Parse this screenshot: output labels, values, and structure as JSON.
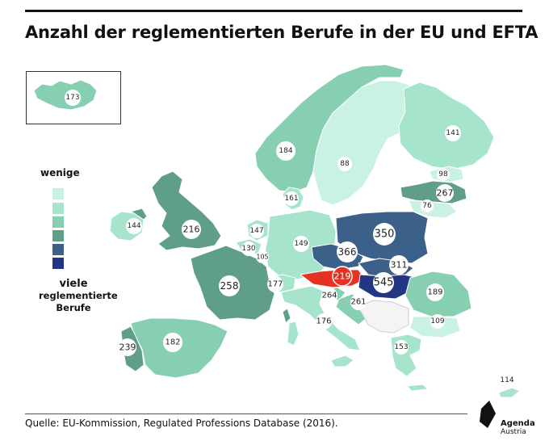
{
  "title": "Anzahl der reglementierten Berufe in der EU und EFTA",
  "legend": {
    "low_label": "wenige",
    "high_label_1": "viele",
    "high_label_2": "reglementierte",
    "high_label_3": "Berufe",
    "colors": [
      "#c9f2e4",
      "#a6e4cc",
      "#86cfb0",
      "#5f9f8a",
      "#3b6089",
      "#223684"
    ]
  },
  "source": "Quelle: EU-Kommission, Regulated Professions Database (2016).",
  "logo": {
    "line1": "Agenda",
    "line2": "Austria"
  },
  "labels": {
    "iceland": "173",
    "norway": "184",
    "sweden": "88",
    "finland": "141",
    "estonia": "98",
    "latvia": "267",
    "lithuania": "76",
    "denmark": "161",
    "ireland": "144",
    "uk": "216",
    "netherlands": "147",
    "belgium": "130",
    "luxembourg": "105",
    "germany": "149",
    "poland": "350",
    "czechia": "366",
    "slovakia": "311",
    "austria": "219",
    "hungary": "545",
    "france": "258",
    "switzerland": "177",
    "slovenia": "264",
    "croatia": "261",
    "italy": "176",
    "romania": "189",
    "bulgaria": "109",
    "spain": "182",
    "portugal": "239",
    "greece": "153",
    "cyprus": "114"
  }
}
